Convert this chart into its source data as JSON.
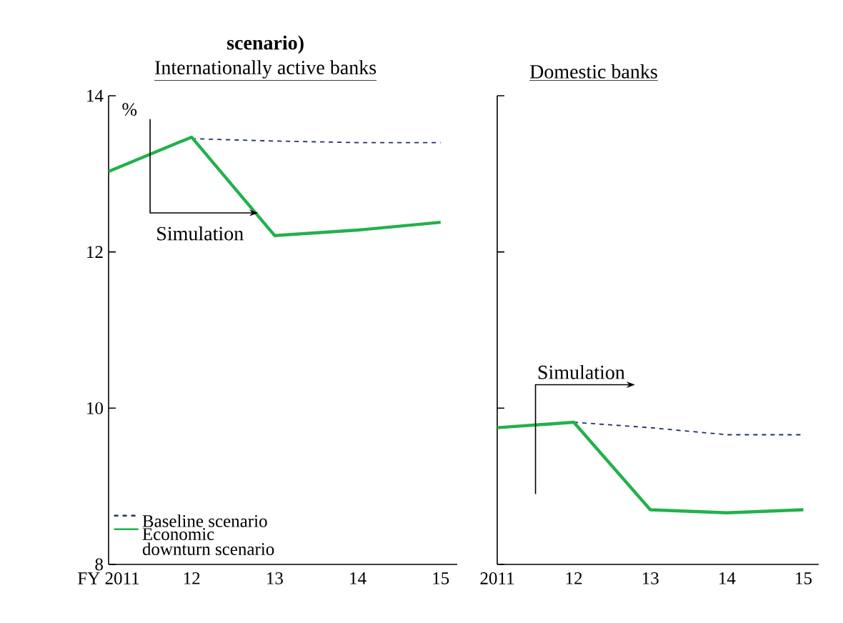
{
  "chart_data": [
    {
      "type": "line",
      "title": "scenario)",
      "subtitle": "Internationally active banks",
      "ylabel": "%",
      "annotations": [
        "Simulation"
      ],
      "x": [
        2011,
        2012,
        2013,
        2014,
        2015
      ],
      "series": [
        {
          "name": "Baseline scenario",
          "color": "#1f2f6e",
          "line_style": "dashed",
          "values": [
            null,
            13.45,
            13.42,
            13.4,
            13.4
          ]
        },
        {
          "name": "Economic downturn scenario",
          "color": "#22b14c",
          "line_style": "solid",
          "values": [
            13.03,
            13.47,
            12.21,
            12.28,
            12.38
          ]
        }
      ],
      "xlim": [
        2011,
        2015.2
      ],
      "ylim": [
        8,
        14
      ],
      "xticks": [
        {
          "value": 2011,
          "label": "FY 2011"
        },
        {
          "value": 2012,
          "label": "12"
        },
        {
          "value": 2013,
          "label": "13"
        },
        {
          "value": 2014,
          "label": "14"
        },
        {
          "value": 2015,
          "label": "15"
        }
      ],
      "yticks": [
        8,
        10,
        12,
        14
      ],
      "legend": "bottom left"
    },
    {
      "type": "line",
      "subtitle": "Domestic banks",
      "annotations": [
        "Simulation"
      ],
      "x": [
        2011,
        2012,
        2013,
        2014,
        2015
      ],
      "series": [
        {
          "color": "#1f2f6e",
          "line_style": "dashed",
          "values": [
            null,
            9.82,
            9.75,
            9.66,
            9.66
          ]
        },
        {
          "color": "#22b14c",
          "line_style": "solid",
          "values": [
            9.75,
            9.82,
            8.7,
            8.66,
            8.7
          ]
        }
      ],
      "xlim": [
        2011,
        2015.2
      ],
      "ylim": [
        8,
        14
      ],
      "xticks": [
        {
          "value": 2011,
          "label": "2011"
        },
        {
          "value": 2012,
          "label": "12"
        },
        {
          "value": 2013,
          "label": "13"
        },
        {
          "value": 2014,
          "label": "14"
        },
        {
          "value": 2015,
          "label": "15"
        }
      ],
      "yticks": [
        {
          "value": 8,
          "label": null
        },
        {
          "value": 10,
          "label": null
        },
        {
          "value": 12,
          "label": null
        },
        {
          "value": 14,
          "label": null
        }
      ],
      "tick_labels": "x"
    }
  ]
}
